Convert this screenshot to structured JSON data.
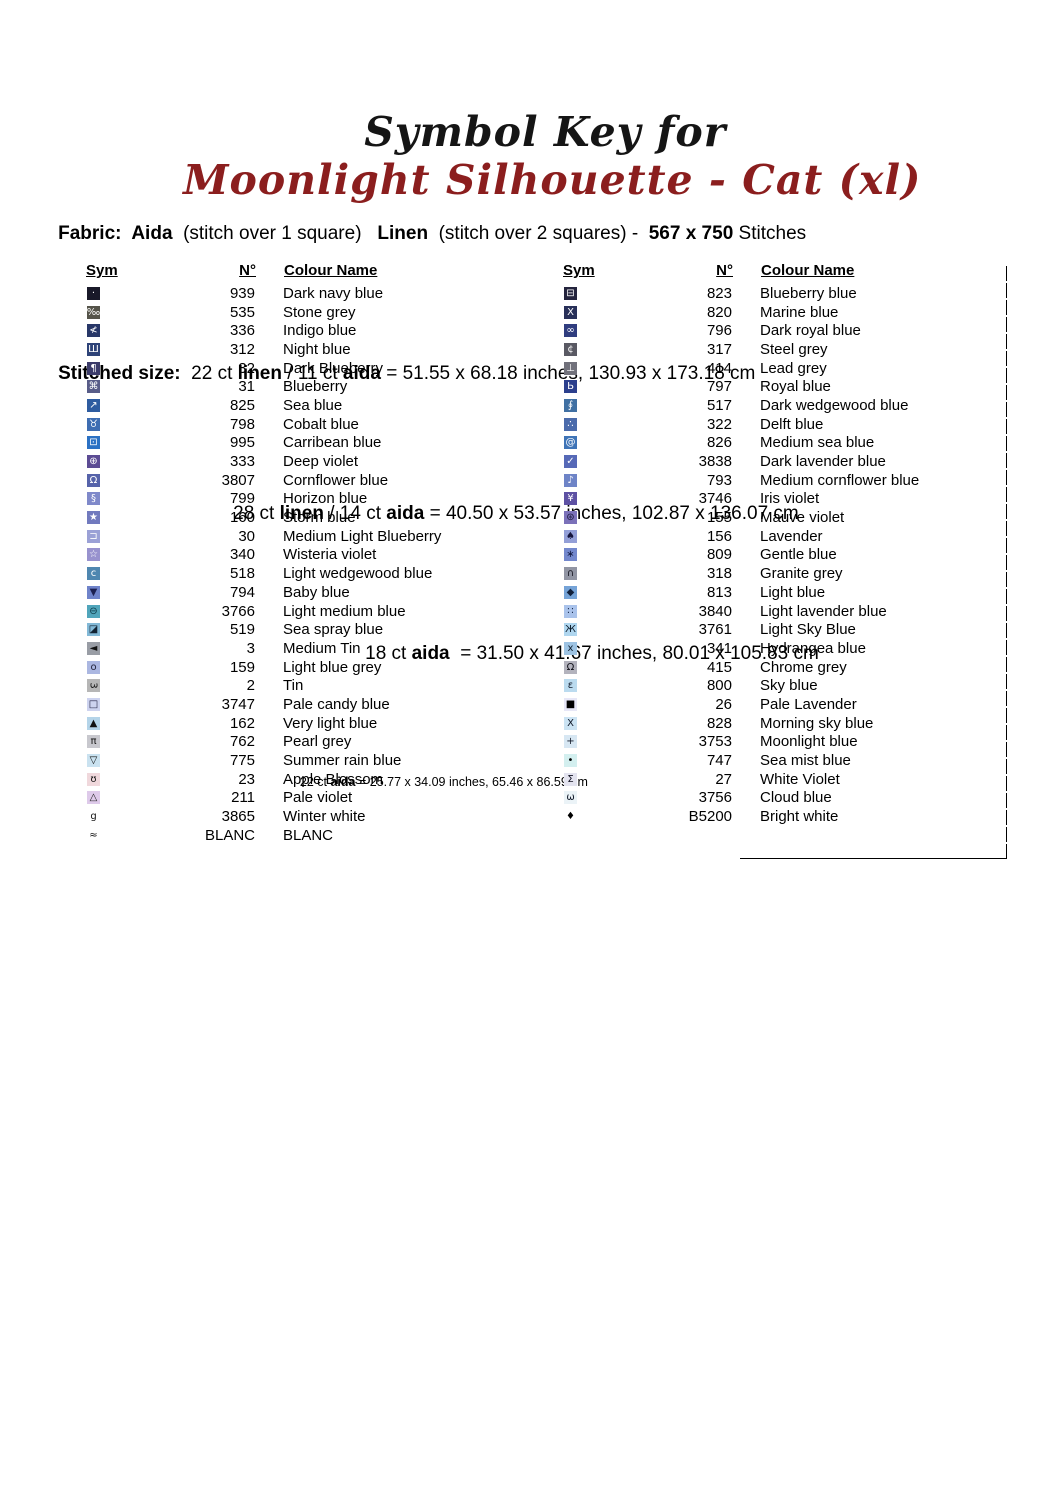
{
  "title": {
    "black": "Symbol Key for",
    "red": "Moonlight Silhouette - Cat (xl)",
    "red_color": "#8b1e1e"
  },
  "header": {
    "fabric": {
      "label": "Fabric:",
      "aida": "  Aida",
      "aida_note": "  (stitch over 1 square)",
      "linen": "   Linen",
      "linen_note": "  (stitch over 2 squares) -",
      "count": "  567 x 750",
      "stitches": " Stitches"
    },
    "stitched_size_label": "Stitched size:",
    "sizes": [
      {
        "prefix": "  22 ct ",
        "bold1": "linen",
        "mid": " / 11 ct ",
        "bold2": "aida",
        "rest": " = 51.55 x 68.18 inches, 130.93 x 173.18 cm"
      },
      {
        "prefix": "28 ct ",
        "bold1": "linen",
        "mid": " / 14 ct ",
        "bold2": "aida",
        "rest": " = 40.50 x 53.57 inches, 102.87 x 136.07 cm"
      },
      {
        "prefix": "18 ct ",
        "bold1": "",
        "mid": "",
        "bold2": "aida",
        "rest": "  = 31.50 x 41.67 inches, 80.01 x 105.83 cm"
      }
    ],
    "small": {
      "prefix": "22 ct ",
      "bold": "aida",
      "rest": " = 25.77 x 34.09 inches, 65.46 x 86.59 cm"
    }
  },
  "table": {
    "headers": {
      "sym": "Sym",
      "no": "N°",
      "name": "Colour Name"
    },
    "left_rows": [
      {
        "glyph": "·",
        "bg": "#191929",
        "fg": "#ffffff",
        "no": "939",
        "name": "Dark navy blue"
      },
      {
        "glyph": "‰",
        "bg": "#55544a",
        "fg": "#ffffff",
        "no": "535",
        "name": "Stone grey"
      },
      {
        "glyph": "≮",
        "bg": "#283768",
        "fg": "#ffffff",
        "no": "336",
        "name": "Indigo blue"
      },
      {
        "glyph": "Ш",
        "bg": "#2e4378",
        "fg": "#ffffff",
        "no": "312",
        "name": "Night blue"
      },
      {
        "glyph": "¶",
        "bg": "#3c3c6a",
        "fg": "#ffffff",
        "no": "32",
        "name": "Dark Blueberry"
      },
      {
        "glyph": "⌘",
        "bg": "#585c88",
        "fg": "#ffffff",
        "no": "31",
        "name": "Blueberry"
      },
      {
        "glyph": "↗",
        "bg": "#2e5ca0",
        "fg": "#ffffff",
        "no": "825",
        "name": "Sea blue"
      },
      {
        "glyph": "♉",
        "bg": "#3e6db2",
        "fg": "#ffffff",
        "no": "798",
        "name": "Cobalt blue"
      },
      {
        "glyph": "⊡",
        "bg": "#2b71c4",
        "fg": "#ffffff",
        "no": "995",
        "name": "Carribean blue"
      },
      {
        "glyph": "⊕",
        "bg": "#5c4c94",
        "fg": "#ffffff",
        "no": "333",
        "name": "Deep violet"
      },
      {
        "glyph": "Ω",
        "bg": "#5663aa",
        "fg": "#ffffff",
        "no": "3807",
        "name": "Cornflower blue"
      },
      {
        "glyph": "§",
        "bg": "#7f89ca",
        "fg": "#ffffff",
        "no": "799",
        "name": "Horizon blue"
      },
      {
        "glyph": "★",
        "bg": "#717abe",
        "fg": "#ffffff",
        "no": "160",
        "name": "Storm blue"
      },
      {
        "glyph": "⊐",
        "bg": "#9ba1d6",
        "fg": "#ffffff",
        "no": "30",
        "name": "Medium Light Blueberry"
      },
      {
        "glyph": "☆",
        "bg": "#9892ce",
        "fg": "#ffffff",
        "no": "340",
        "name": "Wisteria violet"
      },
      {
        "glyph": "c",
        "bg": "#4f87b0",
        "fg": "#ffffff",
        "no": "518",
        "name": "Light wedgewood blue"
      },
      {
        "glyph": "▼",
        "bg": "#6f83ca",
        "fg": "#1c2050",
        "no": "794",
        "name": "Baby blue"
      },
      {
        "glyph": "⊖",
        "bg": "#50a5bb",
        "fg": "#0a3644",
        "no": "3766",
        "name": "Light medium blue"
      },
      {
        "glyph": "◪",
        "bg": "#83b9d7",
        "fg": "#112233",
        "no": "519",
        "name": "Sea spray blue"
      },
      {
        "glyph": "◄",
        "bg": "#999da5",
        "fg": "#111111",
        "no": "3",
        "name": "Medium Tin"
      },
      {
        "glyph": "o",
        "bg": "#abb7e1",
        "fg": "#22223a",
        "no": "159",
        "name": "Light blue grey"
      },
      {
        "glyph": "3",
        "bg": "#b6b6b6",
        "fg": "#111111",
        "no": "2",
        "name": "Tin",
        "rot": 90
      },
      {
        "glyph": "□",
        "bg": "#cdd3ef",
        "fg": "#222244",
        "no": "3747",
        "name": "Pale candy blue"
      },
      {
        "glyph": "▲",
        "bg": "#b4d4e9",
        "fg": "#111111",
        "no": "162",
        "name": "Very light blue"
      },
      {
        "glyph": "π",
        "bg": "#c8c8ce",
        "fg": "#111111",
        "no": "762",
        "name": "Pearl grey"
      },
      {
        "glyph": "▽",
        "bg": "#cae2f0",
        "fg": "#111111",
        "no": "775",
        "name": "Summer rain blue"
      },
      {
        "glyph": "ʊ",
        "bg": "#f0d8dc",
        "fg": "#111111",
        "no": "23",
        "name": "Apple Blossom"
      },
      {
        "glyph": "△",
        "bg": "#decaea",
        "fg": "#222222",
        "no": "211",
        "name": "Pale violet"
      },
      {
        "glyph": "g",
        "bg": "#ffffff",
        "fg": "#111111",
        "no": "3865",
        "name": "Winter white"
      },
      {
        "glyph": "≈",
        "bg": "#ffffff",
        "fg": "#111111",
        "no": "BLANC",
        "name": "BLANC"
      }
    ],
    "right_rows": [
      {
        "glyph": "⊟",
        "bg": "#24243d",
        "fg": "#ffffff",
        "no": "823",
        "name": "Blueberry blue"
      },
      {
        "glyph": "X",
        "bg": "#283059",
        "fg": "#ffffff",
        "no": "820",
        "name": "Marine blue"
      },
      {
        "glyph": "∞",
        "bg": "#303d7f",
        "fg": "#ffffff",
        "no": "796",
        "name": "Dark royal blue"
      },
      {
        "glyph": "¢",
        "bg": "#595963",
        "fg": "#ffffff",
        "no": "317",
        "name": "Steel grey"
      },
      {
        "glyph": "⊥",
        "bg": "#71717b",
        "fg": "#ffffff",
        "no": "414",
        "name": "Lead grey"
      },
      {
        "glyph": "Ь",
        "bg": "#2c3f8d",
        "fg": "#ffffff",
        "no": "797",
        "name": "Royal blue"
      },
      {
        "glyph": "∮",
        "bg": "#4070a3",
        "fg": "#ffffff",
        "no": "517",
        "name": "Dark wedgewood blue"
      },
      {
        "glyph": "∴",
        "bg": "#4b6bab",
        "fg": "#ffffff",
        "no": "322",
        "name": "Delft blue"
      },
      {
        "glyph": "@",
        "bg": "#3f74b7",
        "fg": "#ffffff",
        "no": "826",
        "name": "Medium sea blue"
      },
      {
        "glyph": "✓",
        "bg": "#5669b7",
        "fg": "#ffffff",
        "no": "3838",
        "name": "Dark lavender blue"
      },
      {
        "glyph": "♪",
        "bg": "#6e84c7",
        "fg": "#ffffff",
        "no": "793",
        "name": "Medium cornflower blue"
      },
      {
        "glyph": "¥",
        "bg": "#5d51a3",
        "fg": "#ffffff",
        "no": "3746",
        "name": "Iris violet"
      },
      {
        "glyph": "⊛",
        "bg": "#7b71b9",
        "fg": "#1a1a3a",
        "no": "155",
        "name": "Mauve violet"
      },
      {
        "glyph": "♠",
        "bg": "#939fd7",
        "fg": "#14143c",
        "no": "156",
        "name": "Lavender"
      },
      {
        "glyph": "∗",
        "bg": "#7388cd",
        "fg": "#101840",
        "no": "809",
        "name": "Gentle blue"
      },
      {
        "glyph": "∩",
        "bg": "#9195a3",
        "fg": "#15151f",
        "no": "318",
        "name": "Granite grey"
      },
      {
        "glyph": "◆",
        "bg": "#75a3d7",
        "fg": "#10203a",
        "no": "813",
        "name": "Light blue"
      },
      {
        "glyph": "∷",
        "bg": "#aac3eb",
        "fg": "#1a2a4a",
        "no": "3840",
        "name": "Light lavender blue"
      },
      {
        "glyph": "Ж",
        "bg": "#afd6ef",
        "fg": "#102030",
        "no": "3761",
        "name": "Light Sky Blue"
      },
      {
        "glyph": "x",
        "bg": "#9dc3e3",
        "fg": "#102030",
        "no": "341",
        "name": "Hydrangea blue"
      },
      {
        "glyph": "Ω",
        "bg": "#b3b3bd",
        "fg": "#101018",
        "no": "415",
        "name": "Chrome grey"
      },
      {
        "glyph": "ε",
        "bg": "#bbdbef",
        "fg": "#101828",
        "no": "800",
        "name": "Sky blue"
      },
      {
        "glyph": "■",
        "bg": "#e7e7f7",
        "fg": "#000000",
        "no": "26",
        "name": "Pale Lavender"
      },
      {
        "glyph": "X",
        "bg": "#cbe3f3",
        "fg": "#101828",
        "no": "828",
        "name": "Morning sky blue"
      },
      {
        "glyph": "+",
        "bg": "#d7e7f3",
        "fg": "#101828",
        "no": "3753",
        "name": "Moonlight blue"
      },
      {
        "glyph": "•",
        "bg": "#d3efef",
        "fg": "#000000",
        "no": "747",
        "name": "Sea mist blue"
      },
      {
        "glyph": "Σ",
        "bg": "#e3e3ef",
        "fg": "#101020",
        "no": "27",
        "name": "White Violet"
      },
      {
        "glyph": "ω",
        "bg": "#ebf3f7",
        "fg": "#101828",
        "no": "3756",
        "name": "Cloud blue"
      },
      {
        "glyph": "♦",
        "bg": "#ffffff",
        "fg": "#000000",
        "no": "B5200",
        "name": "Bright white"
      }
    ]
  }
}
